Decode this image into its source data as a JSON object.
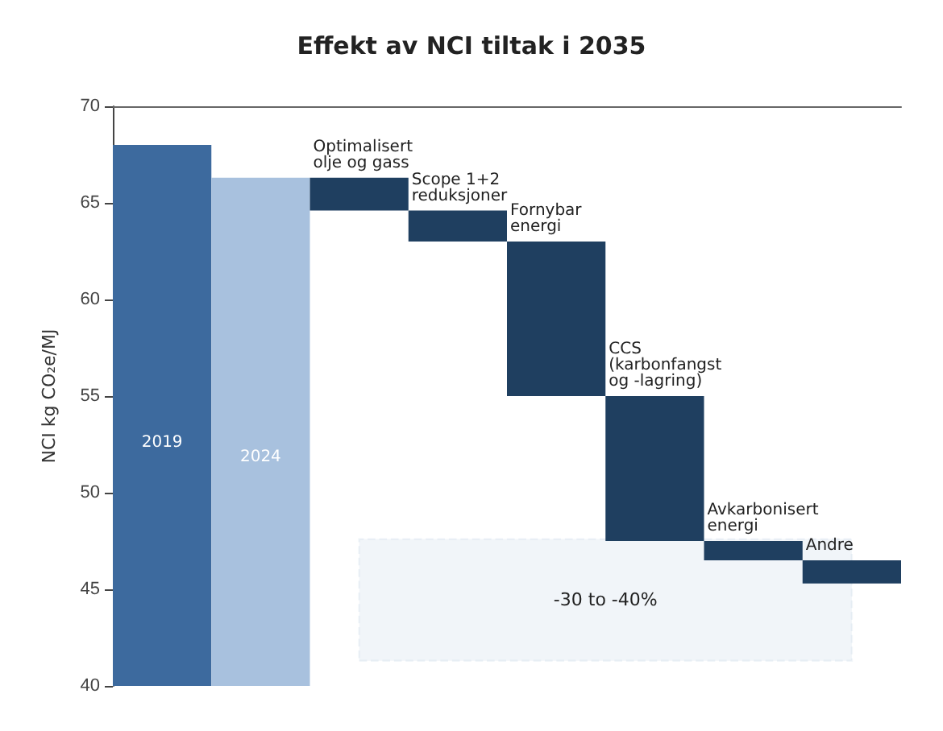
{
  "chart_data": {
    "type": "bar",
    "title": "Effekt av NCI tiltak i 2035",
    "ylabel": "NCI kg CO₂e/MJ",
    "categories": [
      "2019",
      "2024",
      "Optimalisert olje og gass",
      "Scope 1+2 reduksjoner",
      "Fornybar energi",
      "CCS (karbonfangst og -lagring)",
      "Avkarbonisert energi",
      "Andre"
    ],
    "values": [
      28,
      26.3,
      -1.7,
      -1.6,
      -8,
      -7.5,
      -1,
      -1.2
    ],
    "base": [
      40,
      40,
      66.3,
      64.6,
      63,
      55,
      47.5,
      46.5
    ],
    "colors": [
      "#3d6a9e",
      "#a8c1de",
      "#1f3f60",
      "#1f3f60",
      "#1f3f60",
      "#1f3f60",
      "#1f3f60",
      "#1f3f60"
    ],
    "ylim": [
      40,
      70
    ],
    "yticks": [
      40,
      45,
      50,
      55,
      60,
      65,
      70
    ],
    "bands": [
      {
        "axis": "y",
        "from": 41.3,
        "to": 47.6,
        "label": "-30 to -40%",
        "color": "#8fb0cf"
      }
    ],
    "tick_labels": "y",
    "grid": false
  }
}
